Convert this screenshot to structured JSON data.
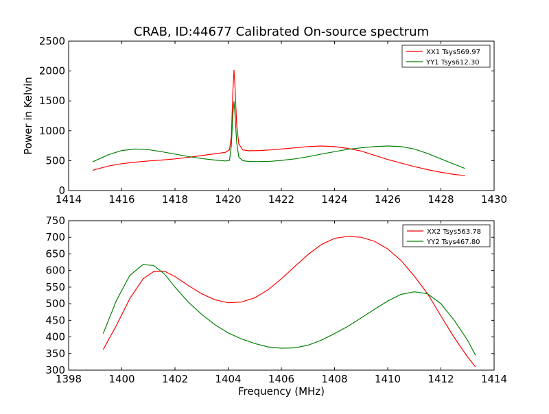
{
  "chart_data": [
    {
      "type": "line",
      "title": "CRAB, ID:44677 Calibrated On-source spectrum",
      "xlabel": "",
      "ylabel": "Power in Kelvin",
      "xlim": [
        1414,
        1430
      ],
      "ylim": [
        0,
        2500
      ],
      "xticks": [
        "1414",
        "1416",
        "1418",
        "1420",
        "1422",
        "1424",
        "1426",
        "1428",
        "1430"
      ],
      "yticks": [
        "0",
        "500",
        "1000",
        "1500",
        "2000",
        "2500"
      ],
      "legend_position": "top-right",
      "series": [
        {
          "name": "XX1 Tsys569.97",
          "color": "#ff0000",
          "x": [
            1414.9,
            1415.5,
            1416,
            1416.5,
            1417,
            1417.5,
            1418,
            1418.5,
            1419,
            1419.5,
            1419.9,
            1420.05,
            1420.12,
            1420.18,
            1420.22,
            1420.26,
            1420.32,
            1420.4,
            1420.55,
            1420.8,
            1421.2,
            1421.6,
            1422,
            1422.5,
            1423,
            1423.5,
            1424,
            1424.5,
            1425,
            1425.5,
            1426,
            1426.5,
            1427,
            1427.5,
            1428,
            1428.5,
            1428.9
          ],
          "y": [
            340,
            410,
            450,
            475,
            495,
            510,
            530,
            555,
            585,
            615,
            640,
            680,
            900,
            1700,
            2020,
            1700,
            1100,
            780,
            680,
            665,
            670,
            680,
            695,
            715,
            735,
            745,
            735,
            705,
            660,
            590,
            520,
            460,
            400,
            350,
            305,
            270,
            250
          ]
        },
        {
          "name": "YY1 Tsys612.30",
          "color": "#008000",
          "x": [
            1414.9,
            1415.5,
            1416,
            1416.5,
            1417,
            1417.5,
            1418,
            1418.5,
            1419,
            1419.5,
            1419.9,
            1420.05,
            1420.12,
            1420.18,
            1420.22,
            1420.26,
            1420.32,
            1420.4,
            1420.55,
            1420.8,
            1421.2,
            1421.6,
            1422,
            1422.5,
            1423,
            1423.5,
            1424,
            1424.5,
            1425,
            1425.5,
            1426,
            1426.5,
            1427,
            1427.5,
            1428,
            1428.5,
            1428.9
          ],
          "y": [
            480,
            600,
            670,
            695,
            685,
            650,
            610,
            570,
            535,
            510,
            495,
            505,
            750,
            1300,
            1490,
            1250,
            800,
            560,
            500,
            485,
            485,
            490,
            505,
            530,
            565,
            610,
            650,
            690,
            715,
            735,
            745,
            735,
            695,
            620,
            530,
            440,
            370
          ]
        }
      ]
    },
    {
      "type": "line",
      "title": "",
      "xlabel": "Frequency (MHz)",
      "ylabel": "",
      "xlim": [
        1398,
        1414
      ],
      "ylim": [
        300,
        750
      ],
      "xticks": [
        "1398",
        "1400",
        "1402",
        "1404",
        "1406",
        "1408",
        "1410",
        "1412",
        "1414"
      ],
      "yticks": [
        "300",
        "350",
        "400",
        "450",
        "500",
        "550",
        "600",
        "650",
        "700",
        "750"
      ],
      "legend_position": "top-right",
      "series": [
        {
          "name": "XX2 Tsys563.78",
          "color": "#ff0000",
          "x": [
            1399.3,
            1399.8,
            1400.3,
            1400.8,
            1401.2,
            1401.6,
            1402,
            1402.5,
            1403,
            1403.5,
            1404,
            1404.5,
            1405,
            1405.5,
            1406,
            1406.5,
            1407,
            1407.5,
            1408,
            1408.5,
            1409,
            1409.5,
            1410,
            1410.5,
            1411,
            1411.5,
            1412,
            1412.5,
            1413,
            1413.3
          ],
          "y": [
            362,
            435,
            515,
            575,
            597,
            598,
            582,
            555,
            530,
            512,
            503,
            505,
            518,
            542,
            575,
            612,
            648,
            678,
            697,
            703,
            700,
            688,
            665,
            630,
            583,
            530,
            463,
            398,
            340,
            310
          ]
        },
        {
          "name": "YY2 Tsys467.80",
          "color": "#008000",
          "x": [
            1399.3,
            1399.8,
            1400.3,
            1400.8,
            1401.2,
            1401.6,
            1402,
            1402.5,
            1403,
            1403.5,
            1404,
            1404.5,
            1405,
            1405.5,
            1406,
            1406.5,
            1407,
            1407.5,
            1408,
            1408.5,
            1409,
            1409.5,
            1410,
            1410.5,
            1411,
            1411.5,
            1412,
            1412.5,
            1413,
            1413.3
          ],
          "y": [
            410,
            510,
            585,
            618,
            615,
            590,
            550,
            505,
            468,
            437,
            412,
            394,
            380,
            370,
            366,
            367,
            375,
            390,
            410,
            432,
            457,
            483,
            508,
            528,
            536,
            530,
            500,
            450,
            390,
            345
          ]
        }
      ]
    }
  ]
}
